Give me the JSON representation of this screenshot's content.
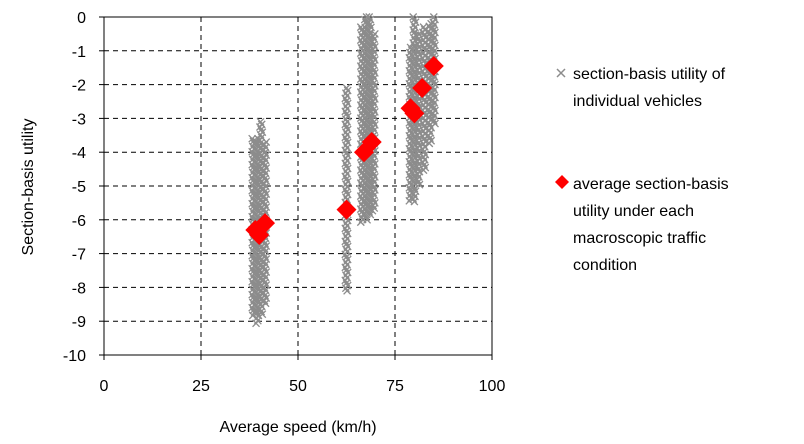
{
  "chart_data": {
    "type": "scatter",
    "title": "",
    "xlabel": "Average speed (km/h)",
    "ylabel": "Section-basis utility",
    "xlim": [
      0,
      100
    ],
    "ylim": [
      -10,
      0
    ],
    "x_ticks": [
      "0",
      "25",
      "50",
      "75",
      "100"
    ],
    "y_ticks": [
      "0",
      "-1",
      "-2",
      "-3",
      "-4",
      "-5",
      "-6",
      "-7",
      "-8",
      "-9",
      "-10"
    ],
    "grid": true,
    "legend_position": "right",
    "colors": {
      "individual": "#8c8c8c",
      "average": "#ff0000",
      "grid": "#000000"
    },
    "series": [
      {
        "name": "section-basis utility of individual vehicles",
        "marker": "x",
        "groups": [
          {
            "x": 38.5,
            "y_min": -8.9,
            "y_max": -3.6
          },
          {
            "x": 39.5,
            "y_min": -9.1,
            "y_max": -3.6
          },
          {
            "x": 40.5,
            "y_min": -8.8,
            "y_max": -3.1
          },
          {
            "x": 41.5,
            "y_min": -8.5,
            "y_max": -3.7
          },
          {
            "x": 62.5,
            "y_min": -8.1,
            "y_max": -2.1
          },
          {
            "x": 66.5,
            "y_min": -6.1,
            "y_max": -0.3
          },
          {
            "x": 67.5,
            "y_min": -6.0,
            "y_max": 0.0
          },
          {
            "x": 68.5,
            "y_min": -5.9,
            "y_max": 0.0
          },
          {
            "x": 69.5,
            "y_min": -5.8,
            "y_max": -0.5
          },
          {
            "x": 79.0,
            "y_min": -5.5,
            "y_max": -0.9
          },
          {
            "x": 80.0,
            "y_min": -5.5,
            "y_max": 0.0
          },
          {
            "x": 81.0,
            "y_min": -5.0,
            "y_max": -0.5
          },
          {
            "x": 82.5,
            "y_min": -4.6,
            "y_max": -0.3
          },
          {
            "x": 84.0,
            "y_min": -3.8,
            "y_max": -0.2
          },
          {
            "x": 85.0,
            "y_min": -3.2,
            "y_max": 0.0
          }
        ]
      },
      {
        "name": "average section-basis utility under each macroscopic traffic condition",
        "marker": "diamond",
        "points": [
          {
            "x": 39.0,
            "y": -6.3
          },
          {
            "x": 40.0,
            "y": -6.45
          },
          {
            "x": 41.5,
            "y": -6.1
          },
          {
            "x": 62.5,
            "y": -5.7
          },
          {
            "x": 67.0,
            "y": -4.0
          },
          {
            "x": 69.0,
            "y": -3.7
          },
          {
            "x": 79.0,
            "y": -2.7
          },
          {
            "x": 80.0,
            "y": -2.85
          },
          {
            "x": 82.0,
            "y": -2.1
          },
          {
            "x": 85.0,
            "y": -1.45
          }
        ]
      }
    ],
    "legend": {
      "entry1_line1": "section-basis utility of",
      "entry1_line2": "individual vehicles",
      "entry2_line1": "average section-basis",
      "entry2_line2": "utility under each",
      "entry2_line3": "macroscopic traffic",
      "entry2_line4": "condition"
    }
  }
}
